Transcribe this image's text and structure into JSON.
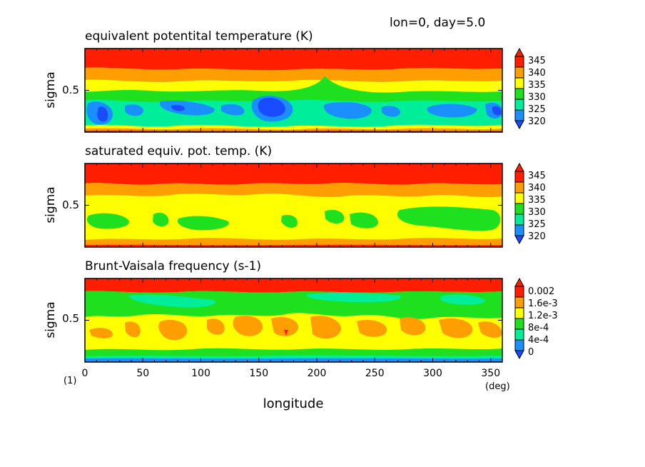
{
  "header": {
    "info": "lon=0, day=5.0"
  },
  "figure": {
    "note": "(1)",
    "x_unit": "(deg)"
  },
  "colors": {
    "red": "#ff1f00",
    "orange": "#ff9e00",
    "yellow": "#ffff00",
    "green": "#1fe01f",
    "cyan": "#00ee9a",
    "blue": "#1a8fff",
    "dark_blue": "#1a4cff"
  },
  "chart_data": [
    {
      "type": "heatmap",
      "title": "equivalent potentital temperature (K)",
      "xlabel": "",
      "ylabel": "sigma",
      "xlim": [
        0,
        360
      ],
      "xticks": [
        "0",
        "50",
        "100",
        "150",
        "200",
        "250",
        "300",
        "350"
      ],
      "yticks": [
        "0.5"
      ],
      "colorbar_labels": [
        "345",
        "340",
        "335",
        "330",
        "325",
        "320"
      ],
      "bands_top_to_bottom": [
        {
          "level": "red",
          "from": 1.0,
          "to": 0.9
        },
        {
          "level": "orange",
          "from": 0.9,
          "to": 0.8
        },
        {
          "level": "yellow",
          "from": 0.8,
          "to": 0.65
        },
        {
          "level": "green",
          "from": 0.65,
          "to": 0.55
        },
        {
          "level": "cyan",
          "from": 0.55,
          "to": 0.35
        },
        {
          "level": "blue",
          "from": 0.35,
          "to": 0.1
        },
        {
          "level": "yellow",
          "from": 0.1,
          "to": 0.05
        },
        {
          "level": "orange",
          "from": 0.05,
          "to": 0.0
        }
      ]
    },
    {
      "type": "heatmap",
      "title": "saturated equiv. pot. temp. (K)",
      "xlabel": "",
      "ylabel": "sigma",
      "xlim": [
        0,
        360
      ],
      "xticks": [
        "0",
        "50",
        "100",
        "150",
        "200",
        "250",
        "300",
        "350"
      ],
      "yticks": [
        "0.5"
      ],
      "colorbar_labels": [
        "345",
        "340",
        "335",
        "330",
        "325",
        "320"
      ],
      "bands_top_to_bottom": [
        {
          "level": "red",
          "from": 1.0,
          "to": 0.75
        },
        {
          "level": "orange",
          "from": 0.75,
          "to": 0.58
        },
        {
          "level": "yellow",
          "from": 0.58,
          "to": 0.4
        },
        {
          "level": "green",
          "from": 0.4,
          "to": 0.2
        },
        {
          "level": "yellow",
          "from": 0.2,
          "to": 0.07
        },
        {
          "level": "orange",
          "from": 0.07,
          "to": 0.0
        }
      ]
    },
    {
      "type": "heatmap",
      "title": "Brunt-Vaisala frequency (s-1)",
      "xlabel": "longitude",
      "ylabel": "sigma",
      "xlim": [
        0,
        360
      ],
      "xticks": [
        "0",
        "50",
        "100",
        "150",
        "200",
        "250",
        "300",
        "350"
      ],
      "yticks": [
        "0.5"
      ],
      "colorbar_labels": [
        "0.002",
        "1.6e-3",
        "1.2e-3",
        "8e-4",
        "4e-4",
        "0"
      ],
      "bands_top_to_bottom": [
        {
          "level": "red",
          "from": 1.0,
          "to": 0.85
        },
        {
          "level": "green",
          "from": 0.85,
          "to": 0.55
        },
        {
          "level": "yellow",
          "from": 0.55,
          "to": 0.45
        },
        {
          "level": "orange",
          "from": 0.45,
          "to": 0.22
        },
        {
          "level": "yellow",
          "from": 0.22,
          "to": 0.12
        },
        {
          "level": "green",
          "from": 0.12,
          "to": 0.05
        },
        {
          "level": "blue",
          "from": 0.05,
          "to": 0.0
        }
      ]
    }
  ]
}
